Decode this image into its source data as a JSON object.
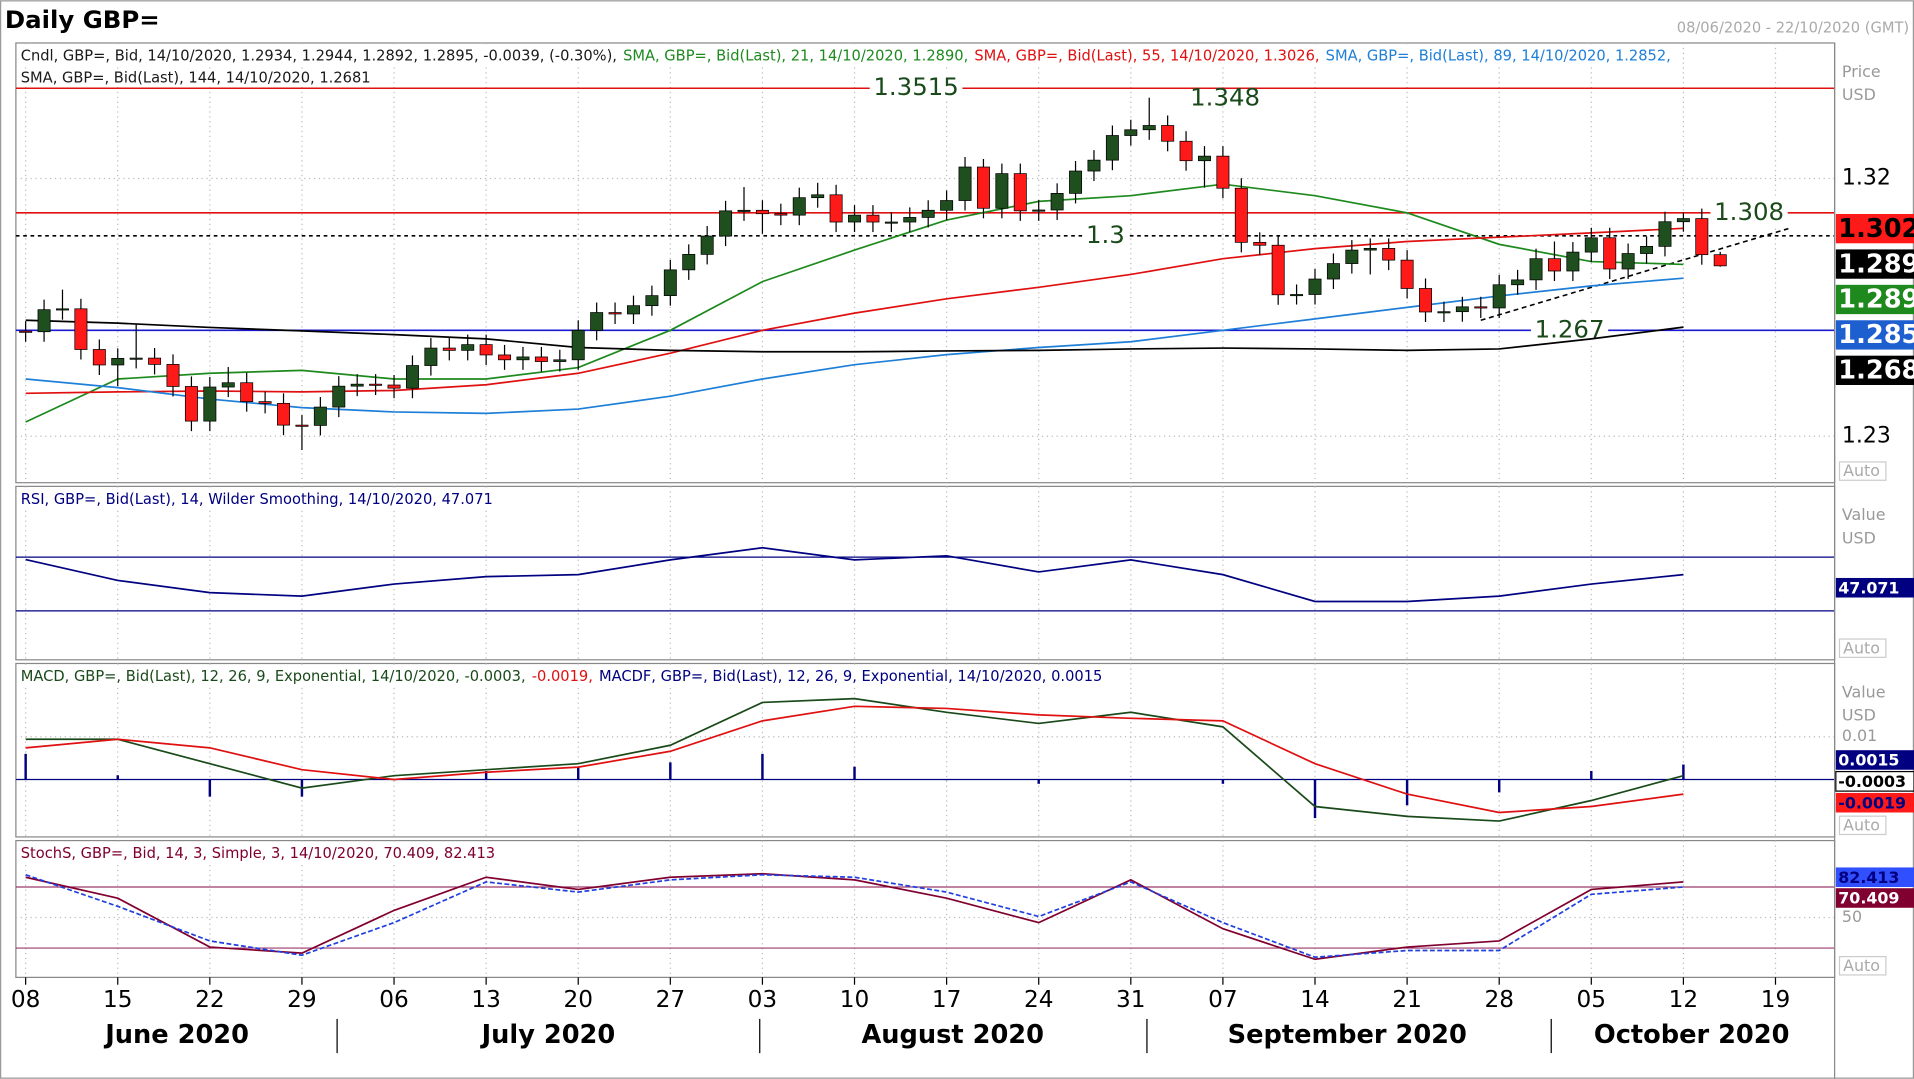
{
  "title": "Daily GBP=",
  "date_range": "08/06/2020 - 22/10/2020 (GMT)",
  "x_axis": {
    "day_ticks": [
      "08",
      "15",
      "22",
      "29",
      "06",
      "13",
      "20",
      "27",
      "03",
      "10",
      "17",
      "24",
      "31",
      "07",
      "14",
      "21",
      "28",
      "05",
      "12",
      "19"
    ],
    "months": [
      "June 2020",
      "July 2020",
      "August 2020",
      "September 2020",
      "October 2020"
    ]
  },
  "chart_data": [
    {
      "type": "candlestick",
      "legend": [
        [
          {
            "text": "Cndl, GBP=, Bid, 14/10/2020, 1.2934, 1.2944, 1.2892, 1.2895, -0.0039, (-0.30%),",
            "color": "#1a1a1a"
          },
          {
            "text": "SMA, GBP=, Bid(Last), 21, 14/10/2020, 1.2890,",
            "color": "#1e8a1e"
          },
          {
            "text": "SMA, GBP=, Bid(Last), 55, 14/10/2020, 1.3026,",
            "color": "#e01010"
          },
          {
            "text": "SMA, GBP=, Bid(Last), 89, 14/10/2020, 1.2852,",
            "color": "#1e7fd8"
          }
        ],
        [
          {
            "text": "SMA, GBP=, Bid(Last), 144, 14/10/2020, 1.2681",
            "color": "#1a1a1a"
          }
        ]
      ],
      "up_color": "#1f4f1f",
      "down_color": "#ff1a1a",
      "open": [
        1.2667,
        1.2665,
        1.2742,
        1.2745,
        1.2603,
        1.2549,
        1.2572,
        1.2573,
        1.2551,
        1.2474,
        1.2353,
        1.2472,
        1.2487,
        1.2421,
        1.2415,
        1.2339,
        1.2338,
        1.2402,
        1.2475,
        1.2482,
        1.2479,
        1.2468,
        1.2547,
        1.2608,
        1.26,
        1.262,
        1.2584,
        1.2567,
        1.2577,
        1.2561,
        1.2567,
        1.267,
        1.2732,
        1.2727,
        1.2756,
        1.2791,
        1.2881,
        1.2935,
        1.2999,
        1.3087,
        1.3089,
        1.3077,
        1.3072,
        1.3133,
        1.3143,
        1.3048,
        1.3072,
        1.3048,
        1.3048,
        1.3064,
        1.3089,
        1.3123,
        1.324,
        1.3096,
        1.3217,
        1.3087,
        1.309,
        1.3148,
        1.3226,
        1.3264,
        1.335,
        1.337,
        1.3385,
        1.333,
        1.3262,
        1.3278,
        1.3166,
        1.2977,
        1.2967,
        1.2794,
        1.2795,
        1.2849,
        1.2903,
        1.295,
        1.2956,
        1.2915,
        1.2816,
        1.2734,
        1.2735,
        1.2752,
        1.2748,
        1.2829,
        1.2846,
        1.292,
        1.2877,
        1.2943,
        1.2993,
        1.2884,
        1.2938,
        1.2963,
        1.3049,
        1.306,
        1.2934
      ],
      "high": [
        1.2702,
        1.2777,
        1.2812,
        1.278,
        1.2638,
        1.2607,
        1.269,
        1.2608,
        1.2586,
        1.2509,
        1.2507,
        1.2542,
        1.2522,
        1.2456,
        1.245,
        1.2374,
        1.2437,
        1.251,
        1.2517,
        1.2517,
        1.2514,
        1.2582,
        1.2643,
        1.2643,
        1.2655,
        1.2655,
        1.2619,
        1.2612,
        1.2612,
        1.2602,
        1.2705,
        1.2767,
        1.2767,
        1.2791,
        1.2826,
        1.2916,
        1.297,
        1.3034,
        1.3122,
        1.317,
        1.3124,
        1.3112,
        1.3168,
        1.3185,
        1.3178,
        1.3107,
        1.3107,
        1.3083,
        1.3099,
        1.3124,
        1.3158,
        1.3275,
        1.3268,
        1.3252,
        1.3252,
        1.3125,
        1.3183,
        1.3261,
        1.3299,
        1.3385,
        1.3405,
        1.3482,
        1.342,
        1.3365,
        1.3313,
        1.3313,
        1.3201,
        1.3012,
        1.3002,
        1.283,
        1.2884,
        1.2938,
        1.2985,
        1.2991,
        1.2991,
        1.295,
        1.2851,
        1.277,
        1.2787,
        1.2787,
        1.2864,
        1.2881,
        1.2955,
        1.298,
        1.2978,
        1.3028,
        1.3028,
        1.2973,
        1.2998,
        1.3084,
        1.3082,
        1.3095,
        1.2944
      ],
      "low": [
        1.263,
        1.263,
        1.2707,
        1.2568,
        1.2514,
        1.2475,
        1.2537,
        1.2516,
        1.2439,
        1.2318,
        1.2318,
        1.2437,
        1.2386,
        1.238,
        1.2304,
        1.2252,
        1.2303,
        1.2367,
        1.244,
        1.2444,
        1.2433,
        1.2433,
        1.2512,
        1.2565,
        1.2565,
        1.2549,
        1.2532,
        1.2532,
        1.2526,
        1.2526,
        1.2532,
        1.2635,
        1.2692,
        1.2692,
        1.2721,
        1.2756,
        1.2846,
        1.29,
        1.2964,
        1.3052,
        1.3007,
        1.3037,
        1.3037,
        1.3098,
        1.3013,
        1.3013,
        1.3013,
        1.3013,
        1.3013,
        1.3029,
        1.3054,
        1.3088,
        1.3061,
        1.3061,
        1.3052,
        1.3052,
        1.3055,
        1.3113,
        1.3191,
        1.3229,
        1.3315,
        1.3335,
        1.3295,
        1.3227,
        1.3168,
        1.3131,
        1.2942,
        1.2932,
        1.2759,
        1.276,
        1.276,
        1.2814,
        1.2868,
        1.2865,
        1.288,
        1.2781,
        1.2699,
        1.2699,
        1.27,
        1.2713,
        1.2713,
        1.2794,
        1.2811,
        1.2842,
        1.2842,
        1.2908,
        1.2849,
        1.2849,
        1.2903,
        1.2928,
        1.3014,
        1.2899,
        1.2892
      ],
      "close": [
        1.2665,
        1.2742,
        1.2745,
        1.2603,
        1.2549,
        1.2572,
        1.2573,
        1.2551,
        1.2474,
        1.2353,
        1.2472,
        1.2487,
        1.2421,
        1.2415,
        1.2339,
        1.2338,
        1.2402,
        1.2475,
        1.2482,
        1.2479,
        1.2468,
        1.2547,
        1.2608,
        1.26,
        1.262,
        1.2584,
        1.2567,
        1.2577,
        1.2561,
        1.2567,
        1.267,
        1.2732,
        1.2727,
        1.2756,
        1.2791,
        1.2881,
        1.2935,
        1.2999,
        1.3087,
        1.3089,
        1.3077,
        1.3072,
        1.3133,
        1.3143,
        1.3048,
        1.3072,
        1.3048,
        1.3048,
        1.3064,
        1.3089,
        1.3123,
        1.324,
        1.3096,
        1.3217,
        1.3087,
        1.309,
        1.3148,
        1.3226,
        1.3264,
        1.335,
        1.337,
        1.3385,
        1.333,
        1.3262,
        1.3278,
        1.3166,
        1.2977,
        1.2967,
        1.2794,
        1.2795,
        1.2849,
        1.2903,
        1.295,
        1.2956,
        1.2915,
        1.2816,
        1.2734,
        1.2735,
        1.2752,
        1.2748,
        1.2829,
        1.2846,
        1.292,
        1.2877,
        1.2943,
        1.2993,
        1.2884,
        1.2938,
        1.2963,
        1.3049,
        1.306,
        1.2934,
        1.2895
      ],
      "series": [
        {
          "color": "#1e8a1e",
          "values": [
            1.235,
            1.25,
            1.252,
            1.253,
            1.25,
            1.25,
            1.254,
            1.267,
            1.284,
            1.295,
            1.3055,
            1.312,
            1.314,
            1.318,
            1.314,
            1.308,
            1.297,
            1.291,
            1.29
          ]
        },
        {
          "color": "#e01010",
          "values": [
            1.245,
            1.2455,
            1.2458,
            1.2455,
            1.246,
            1.248,
            1.252,
            1.259,
            1.267,
            1.273,
            1.278,
            1.282,
            1.2865,
            1.292,
            1.2955,
            1.298,
            1.2995,
            1.301,
            1.3026
          ]
        },
        {
          "color": "#1e7fd8",
          "values": [
            1.25,
            1.247,
            1.243,
            1.24,
            1.2385,
            1.238,
            1.2395,
            1.244,
            1.25,
            1.255,
            1.2585,
            1.261,
            1.263,
            1.267,
            1.271,
            1.275,
            1.279,
            1.2825,
            1.2852
          ]
        },
        {
          "color": "#000000",
          "values": [
            1.2705,
            1.2695,
            1.268,
            1.2668,
            1.2655,
            1.264,
            1.261,
            1.26,
            1.2595,
            1.2595,
            1.2598,
            1.26,
            1.2605,
            1.2608,
            1.2605,
            1.26,
            1.2605,
            1.264,
            1.2681
          ]
        }
      ],
      "ylim": [
        1.2138,
        1.3673
      ],
      "yticks": [
        1.23,
        1.32
      ],
      "grid": true,
      "axis_title": [
        "Price",
        "USD"
      ],
      "scale_mode": "Auto",
      "levels": [
        {
          "value": 1.3515,
          "label": "1.3515",
          "color": "#e01010",
          "style": "solid"
        },
        {
          "value": 1.308,
          "label": "1.308",
          "color": "#e01010",
          "style": "solid"
        },
        {
          "value": 1.3,
          "label": "1.3",
          "color": "#000000",
          "style": "dashed"
        },
        {
          "value": 1.267,
          "label": "1.267",
          "color": "#1a1ad0",
          "style": "solid"
        }
      ],
      "annotations": [
        {
          "value": 1.348,
          "label": "1.348"
        }
      ],
      "trendline": {
        "values": [
          1.2705,
          1.3025
        ],
        "color": "#000000"
      },
      "tags": [
        {
          "label": "1.302",
          "color": "#ff1a1a",
          "text_color": "#000000"
        },
        {
          "label": "1.289",
          "color": "#000000",
          "text_color": "#ffffff"
        },
        {
          "label": "1.289",
          "color": "#1e8a1e",
          "text_color": "#ffffff"
        },
        {
          "label": "1.285",
          "color": "#1e5fd0",
          "text_color": "#ffffff"
        },
        {
          "label": "1.268",
          "color": "#000000",
          "text_color": "#ffffff"
        }
      ]
    },
    {
      "type": "line",
      "legend": [
        [
          {
            "text": "RSI, GBP=, Bid(Last), 14, Wilder Smoothing, 14/10/2020, 47.071",
            "color": "#000080"
          }
        ]
      ],
      "series": [
        {
          "color": "#000080",
          "values": [
            68.2,
            52.7,
            43.6,
            41,
            50,
            55.5,
            57,
            68,
            77,
            68,
            71,
            59,
            68,
            57,
            37,
            37,
            41,
            50,
            57
          ]
        }
      ],
      "ylim": [
        -6.4,
        122.7
      ],
      "bands": [
        30,
        70
      ],
      "band_color": "#000080",
      "axis_title": [
        "Value",
        "USD"
      ],
      "scale_mode": "Auto",
      "tags": [
        {
          "label": "47.071",
          "color": "#000080",
          "text_color": "#ffffff"
        }
      ]
    },
    {
      "type": "line",
      "legend": [
        [
          {
            "text": "MACD, GBP=, Bid(Last), 12, 26, 9, Exponential, 14/10/2020, -0.0003,",
            "color": "#1a4a1a"
          },
          {
            "text": "-0.0019,",
            "color": "#e01010"
          },
          {
            "text": "MACDF, GBP=, Bid(Last), 12, 26, 9, Exponential, 14/10/2020, 0.0015",
            "color": "#000080"
          }
        ]
      ],
      "series": [
        {
          "color": "#000080",
          "style": "bar",
          "values": [
            0.006,
            0.001,
            -0.004,
            -0.004,
            0.0,
            0.002,
            0.003,
            0.004,
            0.006,
            0.003,
            0.0,
            -0.001,
            0.0,
            -0.001,
            -0.009,
            -0.006,
            -0.003,
            0.002,
            0.0035
          ]
        },
        {
          "color": "#1a4a1a",
          "values": [
            0.0094,
            0.0094,
            0.0037,
            -0.002,
            0.0009,
            0.0023,
            0.0037,
            0.008,
            0.018,
            0.0189,
            0.0157,
            0.0131,
            0.0157,
            0.0123,
            -0.0063,
            -0.0086,
            -0.0097,
            -0.0049,
            0.0009
          ]
        },
        {
          "color": "#e01010",
          "values": [
            0.0074,
            0.0094,
            0.0074,
            0.0023,
            0,
            0.0017,
            0.0029,
            0.0066,
            0.0137,
            0.0171,
            0.0166,
            0.0151,
            0.0143,
            0.0137,
            0.0037,
            -0.0034,
            -0.0077,
            -0.0063,
            -0.0034
          ]
        }
      ],
      "ylim": [
        -0.0134,
        0.0271
      ],
      "yticks": [
        0.01
      ],
      "axis_title": [
        "Value",
        "USD"
      ],
      "scale_mode": "Auto",
      "tags": [
        {
          "label": "0.0015",
          "color": "#000080",
          "text_color": "#ffffff"
        },
        {
          "label": "-0.0003",
          "color": "#ffffff",
          "text_color": "#000000"
        },
        {
          "label": "-0.0019",
          "color": "#ff1a1a",
          "text_color": "#000080"
        }
      ]
    },
    {
      "type": "line",
      "legend": [
        [
          {
            "text": "StochS, GBP=, Bid, 14, 3, Simple, 3, 14/10/2020, 70.409, 82.413",
            "color": "#800030"
          }
        ]
      ],
      "series": [
        {
          "color": "#800030",
          "values": [
            89.6,
            69,
            21,
            15,
            57,
            89.6,
            77.6,
            89.6,
            93,
            87,
            69,
            45,
            87,
            39,
            9,
            21,
            27,
            77.6,
            85
          ]
        },
        {
          "color": "#2040e0",
          "style": "dashed",
          "values": [
            92,
            61,
            27,
            13,
            45,
            85,
            75,
            87,
            92,
            89.6,
            75,
            51,
            85,
            45,
            11,
            17.6,
            17.6,
            72.8,
            80
          ]
        }
      ],
      "ylim": [
        -8.8,
        125.6
      ],
      "yticks": [
        50
      ],
      "bands": [
        20,
        80
      ],
      "band_color": "#9b3b6b",
      "scale_mode": "Auto",
      "tags": [
        {
          "label": "82.413",
          "color": "#3050ff",
          "text_color": "#000080"
        },
        {
          "label": "70.409",
          "color": "#800030",
          "text_color": "#ffffff"
        }
      ]
    }
  ]
}
